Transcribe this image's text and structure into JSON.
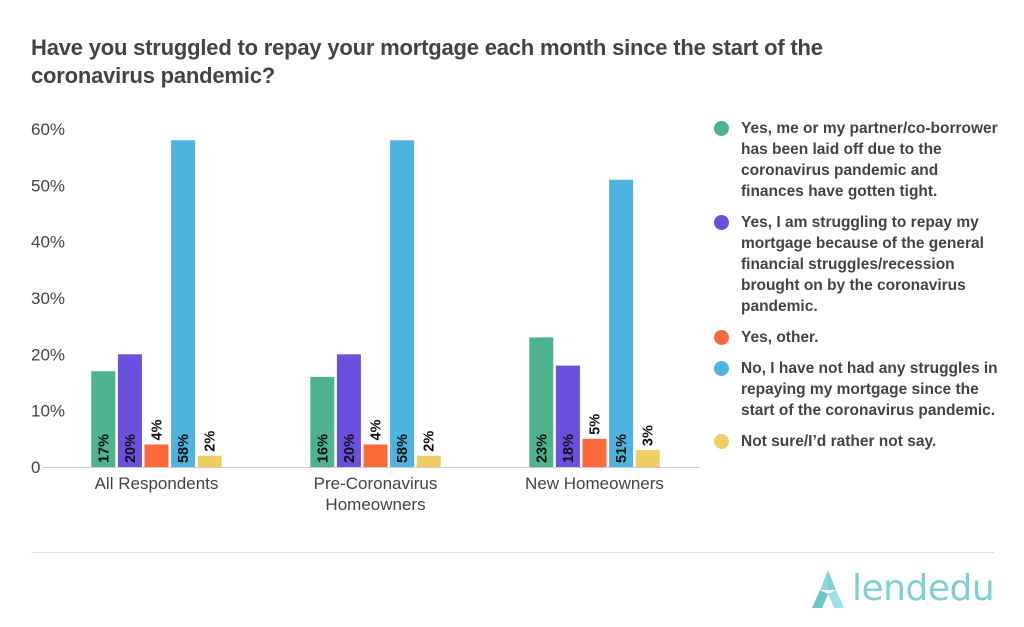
{
  "title": "Have you struggled to repay your mortgage each month since the start of the coronavirus pandemic?",
  "chart_data": {
    "type": "bar",
    "title": "Have you struggled to repay your mortgage each month since the start of the coronavirus pandemic?",
    "xlabel": "",
    "ylabel": "",
    "ylim": [
      0,
      60
    ],
    "yticks": [
      "0",
      "10%",
      "20%",
      "30%",
      "40%",
      "50%",
      "60%"
    ],
    "grid": false,
    "legend_position": "right",
    "categories": [
      "All Respondents",
      "Pre-Coronavirus Homeowners",
      "New Homeowners"
    ],
    "series": [
      {
        "name": "Yes, me or my partner/co-borrower has been laid off due to the coronavirus pandemic and finances have gotten tight.",
        "color": "#4db38e",
        "values": [
          17,
          16,
          23
        ],
        "labels": [
          "17%",
          "16%",
          "23%"
        ]
      },
      {
        "name": "Yes, I am struggling to repay my mortgage because of the general financial struggles/recession brought on by the coronavirus pandemic.",
        "color": "#6c4fdc",
        "values": [
          20,
          20,
          18
        ],
        "labels": [
          "20%",
          "20%",
          "18%"
        ]
      },
      {
        "name": "Yes, other.",
        "color": "#fc6a3a",
        "values": [
          4,
          4,
          5
        ],
        "labels": [
          "4%",
          "4%",
          "5%"
        ]
      },
      {
        "name": "No, I have not had any struggles in repaying my mortgage since the start of the coronavirus pandemic.",
        "color": "#4fb3df",
        "values": [
          58,
          58,
          51
        ],
        "labels": [
          "58%",
          "58%",
          "51%"
        ]
      },
      {
        "name": "Not sure/I’d rather not say.",
        "color": "#f0cd63",
        "values": [
          2,
          2,
          3
        ],
        "labels": [
          "2%",
          "2%",
          "3%"
        ]
      }
    ]
  },
  "logo": {
    "text": "lendedu",
    "color": "#7dcfd3"
  }
}
